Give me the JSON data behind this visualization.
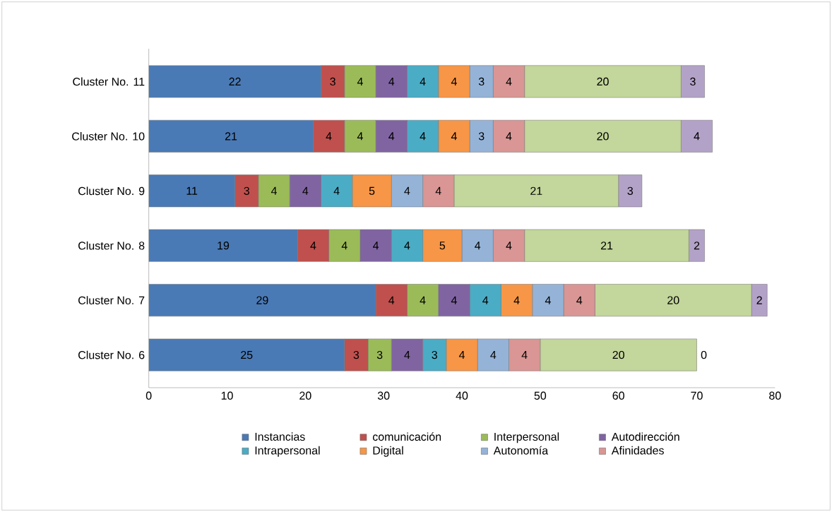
{
  "chart_data": {
    "type": "bar",
    "orientation": "horizontal",
    "stacked": true,
    "data_labels": true,
    "legend": "bottom",
    "grid": false,
    "categories": [
      "Cluster No. 11",
      "Cluster No. 10",
      "Cluster No. 9",
      "Cluster No. 8",
      "Cluster No. 7",
      "Cluster No. 6"
    ],
    "xlim": [
      0,
      80
    ],
    "xticks": [
      0,
      10,
      20,
      30,
      40,
      50,
      60,
      70,
      80
    ],
    "series": [
      {
        "name": "Instancias",
        "color": "#4a7ab5",
        "values": [
          22,
          21,
          11,
          19,
          29,
          25
        ]
      },
      {
        "name": "comunicación",
        "color": "#c0504d",
        "values": [
          3,
          4,
          3,
          4,
          4,
          3
        ]
      },
      {
        "name": "Interpersonal",
        "color": "#9bbb59",
        "values": [
          4,
          4,
          4,
          4,
          4,
          3
        ]
      },
      {
        "name": "Autodirección",
        "color": "#8064a2",
        "values": [
          4,
          4,
          4,
          4,
          4,
          4
        ]
      },
      {
        "name": "Intrapersonal",
        "color": "#4bacc6",
        "values": [
          4,
          4,
          4,
          4,
          4,
          3
        ]
      },
      {
        "name": "Digital",
        "color": "#f79646",
        "values": [
          4,
          4,
          5,
          5,
          4,
          4
        ]
      },
      {
        "name": "Autonomía",
        "color": "#95b3d7",
        "values": [
          3,
          3,
          4,
          4,
          4,
          4
        ]
      },
      {
        "name": "Afinidades",
        "color": "#d99694",
        "values": [
          4,
          4,
          4,
          4,
          4,
          4
        ]
      },
      {
        "color": "#c3d69b",
        "values": [
          20,
          20,
          21,
          21,
          20,
          20
        ]
      },
      {
        "color": "#b3a2c7",
        "values": [
          3,
          4,
          3,
          2,
          2,
          0
        ]
      }
    ]
  }
}
